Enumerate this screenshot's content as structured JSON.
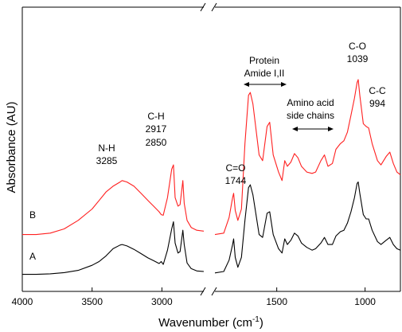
{
  "chart_data": {
    "type": "line",
    "xlabel": "Wavenumber (cm",
    "xlabel_sup": "-1",
    "xlabel_end": ")",
    "ylabel": "Absorbance (AU)",
    "x_reversed": true,
    "x_axis_break": [
      2700,
      1850
    ],
    "xlim": [
      4000,
      800
    ],
    "ylim": [
      0,
      1.0
    ],
    "x_ticks": [
      {
        "value": 4000,
        "label": "4000"
      },
      {
        "value": 3500,
        "label": "3500"
      },
      {
        "value": 3000,
        "label": "3000"
      },
      {
        "value": 1500,
        "label": "1500"
      },
      {
        "value": 1000,
        "label": "1000"
      }
    ],
    "series": [
      {
        "name": "A",
        "color": "#000000",
        "points": [
          [
            4000,
            0.06
          ],
          [
            3900,
            0.06
          ],
          [
            3800,
            0.062
          ],
          [
            3700,
            0.066
          ],
          [
            3600,
            0.074
          ],
          [
            3500,
            0.092
          ],
          [
            3450,
            0.105
          ],
          [
            3400,
            0.125
          ],
          [
            3350,
            0.15
          ],
          [
            3300,
            0.163
          ],
          [
            3285,
            0.165
          ],
          [
            3250,
            0.16
          ],
          [
            3200,
            0.148
          ],
          [
            3150,
            0.133
          ],
          [
            3100,
            0.118
          ],
          [
            3060,
            0.108
          ],
          [
            3020,
            0.098
          ],
          [
            3005,
            0.105
          ],
          [
            2990,
            0.095
          ],
          [
            2960,
            0.145
          ],
          [
            2930,
            0.22
          ],
          [
            2917,
            0.245
          ],
          [
            2905,
            0.17
          ],
          [
            2885,
            0.135
          ],
          [
            2870,
            0.14
          ],
          [
            2850,
            0.215
          ],
          [
            2840,
            0.165
          ],
          [
            2820,
            0.1
          ],
          [
            2790,
            0.08
          ],
          [
            2750,
            0.072
          ],
          [
            2700,
            0.07
          ],
          [
            1850,
            0.065
          ],
          [
            1800,
            0.07
          ],
          [
            1770,
            0.11
          ],
          [
            1750,
            0.165
          ],
          [
            1744,
            0.185
          ],
          [
            1735,
            0.12
          ],
          [
            1720,
            0.085
          ],
          [
            1700,
            0.12
          ],
          [
            1680,
            0.25
          ],
          [
            1660,
            0.365
          ],
          [
            1650,
            0.375
          ],
          [
            1635,
            0.34
          ],
          [
            1600,
            0.2
          ],
          [
            1580,
            0.19
          ],
          [
            1555,
            0.275
          ],
          [
            1540,
            0.28
          ],
          [
            1520,
            0.2
          ],
          [
            1490,
            0.15
          ],
          [
            1470,
            0.135
          ],
          [
            1455,
            0.185
          ],
          [
            1440,
            0.165
          ],
          [
            1420,
            0.18
          ],
          [
            1400,
            0.205
          ],
          [
            1380,
            0.195
          ],
          [
            1360,
            0.17
          ],
          [
            1330,
            0.155
          ],
          [
            1300,
            0.145
          ],
          [
            1280,
            0.15
          ],
          [
            1250,
            0.17
          ],
          [
            1230,
            0.19
          ],
          [
            1210,
            0.165
          ],
          [
            1185,
            0.165
          ],
          [
            1165,
            0.195
          ],
          [
            1140,
            0.21
          ],
          [
            1120,
            0.215
          ],
          [
            1100,
            0.24
          ],
          [
            1080,
            0.28
          ],
          [
            1060,
            0.33
          ],
          [
            1045,
            0.38
          ],
          [
            1039,
            0.385
          ],
          [
            1030,
            0.345
          ],
          [
            1010,
            0.27
          ],
          [
            994,
            0.255
          ],
          [
            980,
            0.255
          ],
          [
            960,
            0.215
          ],
          [
            930,
            0.175
          ],
          [
            910,
            0.165
          ],
          [
            880,
            0.18
          ],
          [
            860,
            0.19
          ],
          [
            840,
            0.165
          ],
          [
            820,
            0.15
          ],
          [
            800,
            0.145
          ]
        ]
      },
      {
        "name": "B",
        "color": "#ff2020",
        "points": [
          [
            4000,
            0.2
          ],
          [
            3900,
            0.2
          ],
          [
            3800,
            0.205
          ],
          [
            3700,
            0.22
          ],
          [
            3600,
            0.25
          ],
          [
            3500,
            0.29
          ],
          [
            3450,
            0.32
          ],
          [
            3400,
            0.35
          ],
          [
            3350,
            0.37
          ],
          [
            3300,
            0.385
          ],
          [
            3285,
            0.39
          ],
          [
            3250,
            0.385
          ],
          [
            3200,
            0.37
          ],
          [
            3150,
            0.345
          ],
          [
            3100,
            0.32
          ],
          [
            3060,
            0.3
          ],
          [
            3020,
            0.28
          ],
          [
            3005,
            0.27
          ],
          [
            2990,
            0.268
          ],
          [
            2960,
            0.33
          ],
          [
            2930,
            0.43
          ],
          [
            2917,
            0.445
          ],
          [
            2905,
            0.33
          ],
          [
            2885,
            0.3
          ],
          [
            2870,
            0.305
          ],
          [
            2850,
            0.39
          ],
          [
            2840,
            0.31
          ],
          [
            2820,
            0.25
          ],
          [
            2790,
            0.225
          ],
          [
            2750,
            0.215
          ],
          [
            2700,
            0.212
          ],
          [
            1850,
            0.2
          ],
          [
            1800,
            0.205
          ],
          [
            1770,
            0.26
          ],
          [
            1750,
            0.33
          ],
          [
            1744,
            0.345
          ],
          [
            1735,
            0.285
          ],
          [
            1720,
            0.25
          ],
          [
            1700,
            0.29
          ],
          [
            1680,
            0.52
          ],
          [
            1660,
            0.69
          ],
          [
            1650,
            0.7
          ],
          [
            1635,
            0.66
          ],
          [
            1600,
            0.48
          ],
          [
            1580,
            0.46
          ],
          [
            1555,
            0.58
          ],
          [
            1540,
            0.595
          ],
          [
            1520,
            0.48
          ],
          [
            1490,
            0.42
          ],
          [
            1470,
            0.39
          ],
          [
            1455,
            0.46
          ],
          [
            1440,
            0.44
          ],
          [
            1420,
            0.455
          ],
          [
            1400,
            0.485
          ],
          [
            1380,
            0.47
          ],
          [
            1360,
            0.44
          ],
          [
            1330,
            0.42
          ],
          [
            1300,
            0.415
          ],
          [
            1280,
            0.42
          ],
          [
            1250,
            0.46
          ],
          [
            1230,
            0.48
          ],
          [
            1210,
            0.44
          ],
          [
            1185,
            0.45
          ],
          [
            1165,
            0.5
          ],
          [
            1140,
            0.52
          ],
          [
            1120,
            0.53
          ],
          [
            1100,
            0.56
          ],
          [
            1080,
            0.62
          ],
          [
            1060,
            0.68
          ],
          [
            1045,
            0.735
          ],
          [
            1039,
            0.745
          ],
          [
            1030,
            0.69
          ],
          [
            1010,
            0.59
          ],
          [
            994,
            0.58
          ],
          [
            980,
            0.575
          ],
          [
            960,
            0.52
          ],
          [
            930,
            0.46
          ],
          [
            910,
            0.445
          ],
          [
            880,
            0.475
          ],
          [
            860,
            0.49
          ],
          [
            840,
            0.45
          ],
          [
            820,
            0.42
          ],
          [
            800,
            0.41
          ]
        ]
      }
    ],
    "series_labels": [
      {
        "text": "A",
        "series": 0
      },
      {
        "text": "B",
        "series": 1
      }
    ],
    "annotations": [
      {
        "lines": [
          "N-H",
          "3285"
        ]
      },
      {
        "lines": [
          "C-H",
          "2917",
          "2850"
        ]
      },
      {
        "lines": [
          "C=O",
          "1744"
        ]
      },
      {
        "lines": [
          "Protein",
          "Amide I,II"
        ]
      },
      {
        "lines": [
          "Amino acid",
          "side chains"
        ]
      },
      {
        "lines": [
          "C-O",
          "1039"
        ]
      },
      {
        "lines": [
          "C-C",
          "994"
        ]
      }
    ],
    "grid": false,
    "legend": "none"
  }
}
